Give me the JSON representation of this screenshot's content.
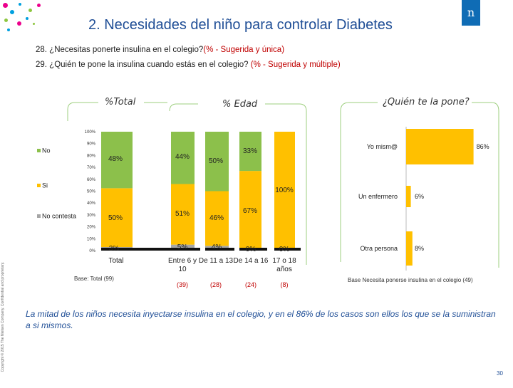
{
  "slide": {
    "title": "2. Necesidades del niño para controlar Diabetes",
    "logo_text": "n",
    "q28_text": "28. ¿Necesitas ponerte insulina en el colegio?",
    "q28_qual": "(% - Sugerida y única)",
    "q29_text": "29. ¿Quién te pone la insulina cuando estás en el colegio? ",
    "q29_qual": "(% - Sugerida y múltiple)",
    "header_total": "%Total",
    "header_edad": "% Edad",
    "header_quien": "¿Quién te la pone?",
    "base_total": "Base: Total (99)",
    "base_quien": "Base Necesita ponerse insulina en el colegio (49)",
    "footer": "La mitad de los niños necesita inyectarse insulina en el colegio, y en el 86% de los casos son ellos los que se la suministran a si mismos.",
    "copyright": "Copyright © 2015 The Nielsen Company. Confidential and proprietary.",
    "page_number": "30"
  },
  "colors": {
    "no": "#8cc04b",
    "si": "#ffc000",
    "no_contesta": "#a6a6a6",
    "bar_orange": "#ffc000",
    "title_blue": "#1f4e96",
    "logo_blue": "#0f6cb5"
  },
  "chart_data": [
    {
      "type": "bar",
      "stacked": true,
      "title": "%Total / % Edad",
      "categories": [
        "Total",
        "Entre 6 y 10",
        "De 11 a 13",
        "De 14 a 16",
        "17 o 18 años"
      ],
      "bases": [
        "",
        "(39)",
        "(28)",
        "(24)",
        "(8)"
      ],
      "series": [
        {
          "name": "No contesta",
          "values": [
            3,
            5,
            4,
            0,
            0
          ]
        },
        {
          "name": "Si",
          "values": [
            50,
            51,
            46,
            67,
            100
          ]
        },
        {
          "name": "No",
          "values": [
            48,
            44,
            50,
            33,
            0
          ]
        }
      ],
      "y_ticks": [
        "100%",
        "90%",
        "80%",
        "70%",
        "60%",
        "50%",
        "40%",
        "30%",
        "20%",
        "10%",
        "0%"
      ],
      "ylim": [
        0,
        100
      ],
      "legend": [
        "No",
        "Si",
        "No contesta"
      ],
      "legend_position": "left"
    },
    {
      "type": "bar",
      "orientation": "horizontal",
      "title": "¿Quién te la pone?",
      "categories": [
        "Yo mism@",
        "Un enfermero",
        "Otra persona"
      ],
      "values": [
        86,
        6,
        8
      ],
      "value_labels": [
        "86%",
        "6%",
        "8%"
      ],
      "xlim": [
        0,
        100
      ]
    }
  ]
}
